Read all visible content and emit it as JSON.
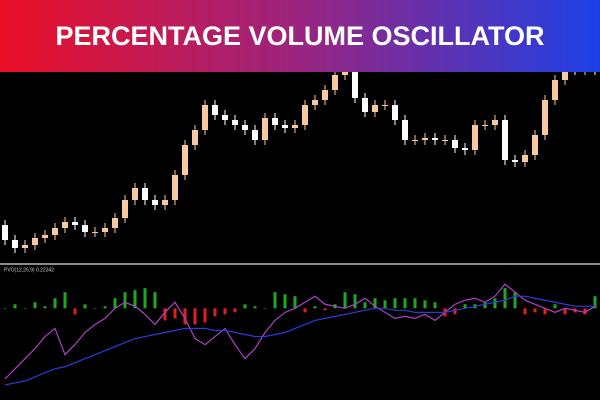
{
  "chart_data": [
    {
      "type": "candlestick",
      "title": "PERCENTAGE VOLUME OSCILLATOR",
      "open": [
        175,
        160,
        152,
        155,
        162,
        165,
        172,
        178,
        175,
        168,
        168,
        172,
        182,
        200,
        212,
        200,
        195,
        200,
        225,
        255,
        270,
        295,
        285,
        280,
        275,
        270,
        260,
        282,
        275,
        272,
        275,
        295,
        300,
        310,
        325,
        328,
        302,
        288,
        295,
        295,
        280,
        260,
        260,
        262,
        260,
        260,
        252,
        250,
        275,
        275,
        280,
        240,
        238,
        245,
        265,
        300,
        320,
        332,
        330,
        332
      ],
      "high": [
        180,
        165,
        160,
        167,
        170,
        177,
        183,
        183,
        180,
        173,
        177,
        187,
        205,
        217,
        217,
        205,
        205,
        230,
        260,
        275,
        300,
        300,
        290,
        285,
        280,
        275,
        287,
        287,
        280,
        280,
        300,
        305,
        315,
        330,
        333,
        333,
        307,
        300,
        300,
        300,
        285,
        265,
        267,
        267,
        265,
        265,
        257,
        280,
        280,
        285,
        285,
        245,
        250,
        270,
        305,
        325,
        337,
        337,
        337,
        337
      ],
      "low": [
        155,
        147,
        147,
        150,
        157,
        160,
        167,
        170,
        163,
        163,
        163,
        167,
        177,
        195,
        195,
        190,
        190,
        195,
        220,
        250,
        265,
        280,
        275,
        270,
        265,
        255,
        255,
        270,
        267,
        267,
        270,
        290,
        295,
        305,
        320,
        297,
        283,
        283,
        290,
        275,
        255,
        255,
        255,
        255,
        255,
        247,
        245,
        245,
        270,
        270,
        235,
        233,
        233,
        240,
        260,
        295,
        315,
        325,
        325,
        325
      ],
      "close": [
        160,
        152,
        155,
        162,
        165,
        172,
        178,
        175,
        168,
        168,
        172,
        182,
        200,
        212,
        200,
        195,
        200,
        225,
        255,
        270,
        295,
        285,
        280,
        275,
        270,
        260,
        282,
        275,
        272,
        275,
        295,
        300,
        310,
        325,
        328,
        302,
        288,
        295,
        295,
        280,
        260,
        260,
        262,
        260,
        260,
        252,
        250,
        275,
        275,
        280,
        240,
        238,
        245,
        265,
        300,
        320,
        332,
        330,
        332,
        330
      ],
      "up_color": "#f6c9a0",
      "down_color": "#ffffff",
      "ylim": [
        138,
        328
      ]
    },
    {
      "type": "oscillator",
      "label": "PVO(12,26,9) 0.22342",
      "values": [
        0,
        2,
        0,
        3,
        1,
        5,
        8,
        -3,
        2,
        0,
        1,
        5,
        8,
        9,
        10,
        8,
        -6,
        -5,
        -8,
        -8,
        -7,
        -4,
        -3,
        -2,
        2,
        1,
        0,
        8,
        7,
        6,
        -2,
        1,
        -1,
        2,
        8,
        7,
        3,
        5,
        4,
        5,
        5,
        5,
        4,
        3,
        -4,
        -3,
        2,
        2,
        3,
        5,
        10,
        8,
        -3,
        -2,
        -3,
        2,
        -3,
        -2,
        -3,
        6
      ],
      "positive_color": "#1fa81f",
      "negative_color": "#e02020",
      "lines": [
        {
          "color": "#b040c8",
          "values": [
            -35,
            -30,
            -25,
            -20,
            -14,
            -10,
            -23,
            -18,
            -12,
            -8,
            -5,
            0,
            3,
            1,
            -3,
            -8,
            -2,
            3,
            -5,
            -15,
            -18,
            -14,
            -10,
            -18,
            -25,
            -20,
            -12,
            -6,
            -2,
            0,
            3,
            6,
            2,
            1,
            0,
            2,
            5,
            1,
            -2,
            -5,
            -4,
            -5,
            -3,
            -6,
            -2,
            2,
            4,
            5,
            3,
            6,
            12,
            8,
            4,
            2,
            0,
            -2,
            0,
            -1,
            -2,
            1
          ]
        },
        {
          "color": "#2a3cd8",
          "values": [
            -38,
            -37,
            -36,
            -34,
            -32,
            -30,
            -29,
            -27,
            -25,
            -23,
            -21,
            -19,
            -17,
            -15,
            -14,
            -13,
            -12,
            -11,
            -10,
            -10,
            -10,
            -11,
            -11,
            -12,
            -13,
            -14,
            -14,
            -13,
            -12,
            -10,
            -8,
            -6,
            -5,
            -4,
            -3,
            -2,
            -1,
            0,
            0,
            -1,
            -1,
            -2,
            -2,
            -2,
            -2,
            -1,
            0,
            1,
            2,
            3,
            4,
            6,
            6,
            5,
            4,
            3,
            2,
            1,
            1,
            1
          ]
        }
      ],
      "ylim": [
        -43,
        19
      ]
    }
  ]
}
